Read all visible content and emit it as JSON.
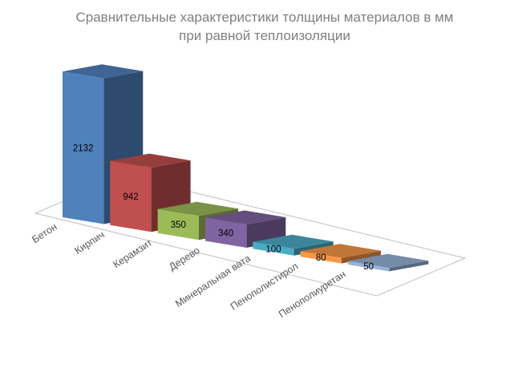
{
  "chart_data": {
    "type": "bar",
    "title": "Сравнительные характеристики толщины материалов в мм при равной теплоизоляции",
    "title_lines": [
      "Сравнительные характеристики толщины материалов в мм",
      "при равной теплоизоляции"
    ],
    "categories": [
      "Бетон",
      "Кирпич",
      "Керамзит",
      "Дерево",
      "Минеральная вата",
      "Пенополистирол",
      "Пенополиуретан"
    ],
    "values": [
      2132,
      942,
      350,
      340,
      100,
      80,
      50
    ],
    "value_labels": [
      "2132",
      "942",
      "350",
      "340",
      "100",
      "80",
      "50"
    ],
    "colors": [
      "#4f81bd",
      "#c0504d",
      "#9bbb59",
      "#8064a2",
      "#4bacc6",
      "#f79646",
      "#95b3d7"
    ],
    "ylim": [
      0,
      2300
    ],
    "grid": false,
    "legend": "none",
    "style": "3d-column"
  }
}
